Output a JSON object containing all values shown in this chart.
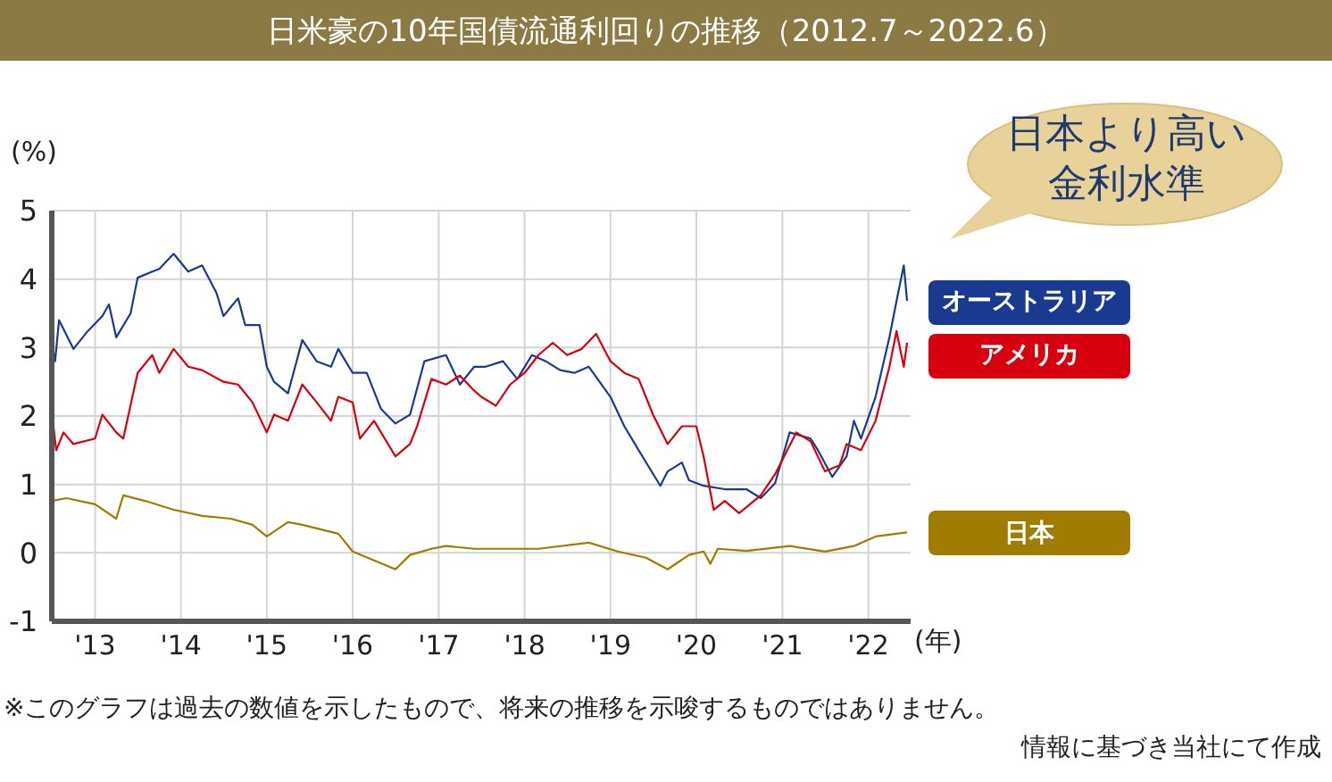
{
  "chart_data": {
    "type": "line",
    "title": "日米豪の10年国債流通利回りの推移（2012.7～2022.6）",
    "ylabel": "(%)",
    "xlabel": "(年)",
    "annotations": [
      "日本より高い金利水準",
      "※このグラフは過去の数値を示したもので、将来の推移を示唆するものではありません。",
      "情報に基づき当社にて作成"
    ],
    "xlim": [
      "2012-07-01",
      "2022-06-30"
    ],
    "xticks": [
      {
        "value": "2013",
        "label": "'13"
      },
      {
        "value": "2014",
        "label": "'14"
      },
      {
        "value": "2015",
        "label": "'15"
      },
      {
        "value": "2016",
        "label": "'16"
      },
      {
        "value": "2017",
        "label": "'17"
      },
      {
        "value": "2018",
        "label": "'18"
      },
      {
        "value": "2019",
        "label": "'19"
      },
      {
        "value": "2020",
        "label": "'20"
      },
      {
        "value": "2021",
        "label": "'21"
      },
      {
        "value": "2022",
        "label": "'22"
      }
    ],
    "ylim": [
      -1,
      5
    ],
    "yticks": [
      -1,
      0,
      1,
      2,
      3,
      4,
      5
    ],
    "grid": true,
    "legend": "right",
    "marker": "none",
    "line_style": "solid",
    "series": [
      {
        "name": "オーストラリア",
        "color": "#1a3a8f",
        "x": [
          "2012-07-01",
          "2012-07-15",
          "2012-08",
          "2012-10",
          "2012-12",
          "2013-02",
          "2013-03",
          "2013-04",
          "2013-06",
          "2013-07",
          "2013-09",
          "2013-10",
          "2013-12",
          "2014-02",
          "2014-04",
          "2014-06",
          "2014-07",
          "2014-09",
          "2014-10",
          "2014-12",
          "2015-01",
          "2015-02",
          "2015-04",
          "2015-06",
          "2015-08",
          "2015-10",
          "2015-11",
          "2016-01",
          "2016-03",
          "2016-05",
          "2016-07",
          "2016-09",
          "2016-11",
          "2017-02",
          "2017-04",
          "2017-06",
          "2017-07-20",
          "2017-10",
          "2017-12",
          "2018-02",
          "2018-04",
          "2018-06",
          "2018-08",
          "2018-10",
          "2019-01",
          "2019-03",
          "2019-05",
          "2019-08",
          "2019-09",
          "2019-11",
          "2019-12",
          "2020-02",
          "2020-05",
          "2020-08",
          "2020-10",
          "2020-12",
          "2021-02",
          "2021-05",
          "2021-06",
          "2021-08",
          "2021-10",
          "2021-11",
          "2021-12",
          "2022-02",
          "2022-04",
          "2022-05",
          "2022-06-01",
          "2022-06-15"
        ],
        "values": [
          3.07,
          2.8,
          3.4,
          2.98,
          3.24,
          3.46,
          3.63,
          3.15,
          3.5,
          4.02,
          4.11,
          4.15,
          4.37,
          4.11,
          4.2,
          3.8,
          3.46,
          3.72,
          3.33,
          3.33,
          2.72,
          2.5,
          2.33,
          3.11,
          2.8,
          2.72,
          2.98,
          2.63,
          2.63,
          2.1,
          1.89,
          2.02,
          2.8,
          2.89,
          2.46,
          2.72,
          2.72,
          2.8,
          2.54,
          2.89,
          2.8,
          2.67,
          2.63,
          2.72,
          2.28,
          1.85,
          1.5,
          0.98,
          1.19,
          1.32,
          1.06,
          0.98,
          0.93,
          0.93,
          0.8,
          1.02,
          1.76,
          1.67,
          1.5,
          1.11,
          1.41,
          1.93,
          1.67,
          2.28,
          3.15,
          3.68,
          4.2,
          3.68
        ]
      },
      {
        "name": "アメリカ",
        "color": "#d7000f",
        "x": [
          "2012-07-08",
          "2012-07-20",
          "2012-08-20",
          "2012-10",
          "2013-01",
          "2013-02",
          "2013-04",
          "2013-05",
          "2013-07",
          "2013-09",
          "2013-10",
          "2013-12",
          "2014-02",
          "2014-04",
          "2014-07",
          "2014-09",
          "2014-11",
          "2015-01",
          "2015-02",
          "2015-04",
          "2015-06",
          "2015-08",
          "2015-10",
          "2015-11",
          "2016-01",
          "2016-02",
          "2016-04",
          "2016-07",
          "2016-09",
          "2016-10",
          "2016-12",
          "2017-02",
          "2017-04",
          "2017-06",
          "2017-07",
          "2017-09",
          "2017-11",
          "2018-01",
          "2018-03",
          "2018-05",
          "2018-07",
          "2018-09",
          "2018-11",
          "2019-01",
          "2019-03",
          "2019-05",
          "2019-07",
          "2019-09",
          "2019-11",
          "2020-01",
          "2020-02",
          "2020-03-15",
          "2020-05",
          "2020-07",
          "2020-10",
          "2020-12",
          "2021-03",
          "2021-05",
          "2021-07",
          "2021-09",
          "2021-10",
          "2021-12",
          "2022-02",
          "2022-04",
          "2022-05",
          "2022-06-01",
          "2022-06-15"
        ],
        "values": [
          1.85,
          1.5,
          1.76,
          1.59,
          1.67,
          2.02,
          1.76,
          1.67,
          2.63,
          2.89,
          2.63,
          2.98,
          2.72,
          2.67,
          2.5,
          2.46,
          2.2,
          1.76,
          2.02,
          1.93,
          2.46,
          2.2,
          1.93,
          2.28,
          2.2,
          1.67,
          1.93,
          1.41,
          1.59,
          1.85,
          2.54,
          2.46,
          2.59,
          2.37,
          2.28,
          2.15,
          2.46,
          2.63,
          2.89,
          3.07,
          2.89,
          2.98,
          3.2,
          2.8,
          2.63,
          2.54,
          2.02,
          1.59,
          1.85,
          1.85,
          1.41,
          0.63,
          0.76,
          0.58,
          0.84,
          1.15,
          1.76,
          1.63,
          1.19,
          1.28,
          1.59,
          1.5,
          1.93,
          2.72,
          3.24,
          2.72,
          3.07
        ]
      },
      {
        "name": "日本",
        "color": "#a07c00",
        "x": [
          "2012-07-01",
          "2012-09",
          "2013-01",
          "2013-04",
          "2013-05",
          "2013-08",
          "2013-12",
          "2014-04",
          "2014-08",
          "2014-11",
          "2015-01",
          "2015-04",
          "2015-06",
          "2015-11",
          "2016-01",
          "2016-04",
          "2016-07",
          "2016-09",
          "2016-12",
          "2017-02",
          "2017-06",
          "2017-10",
          "2018-03",
          "2018-10",
          "2019-02",
          "2019-06",
          "2019-09",
          "2019-12",
          "2020-02",
          "2020-03",
          "2020-04",
          "2020-08",
          "2021-02",
          "2021-07",
          "2021-11",
          "2022-02",
          "2022-06-15"
        ],
        "values": [
          0.76,
          0.8,
          0.71,
          0.5,
          0.84,
          0.76,
          0.63,
          0.54,
          0.5,
          0.41,
          0.24,
          0.45,
          0.41,
          0.28,
          0.02,
          -0.11,
          -0.24,
          -0.03,
          0.06,
          0.1,
          0.06,
          0.06,
          0.06,
          0.15,
          0.02,
          -0.07,
          -0.24,
          -0.03,
          0.02,
          -0.16,
          0.06,
          0.03,
          0.1,
          0.02,
          0.1,
          0.24,
          0.3
        ]
      }
    ]
  }
}
